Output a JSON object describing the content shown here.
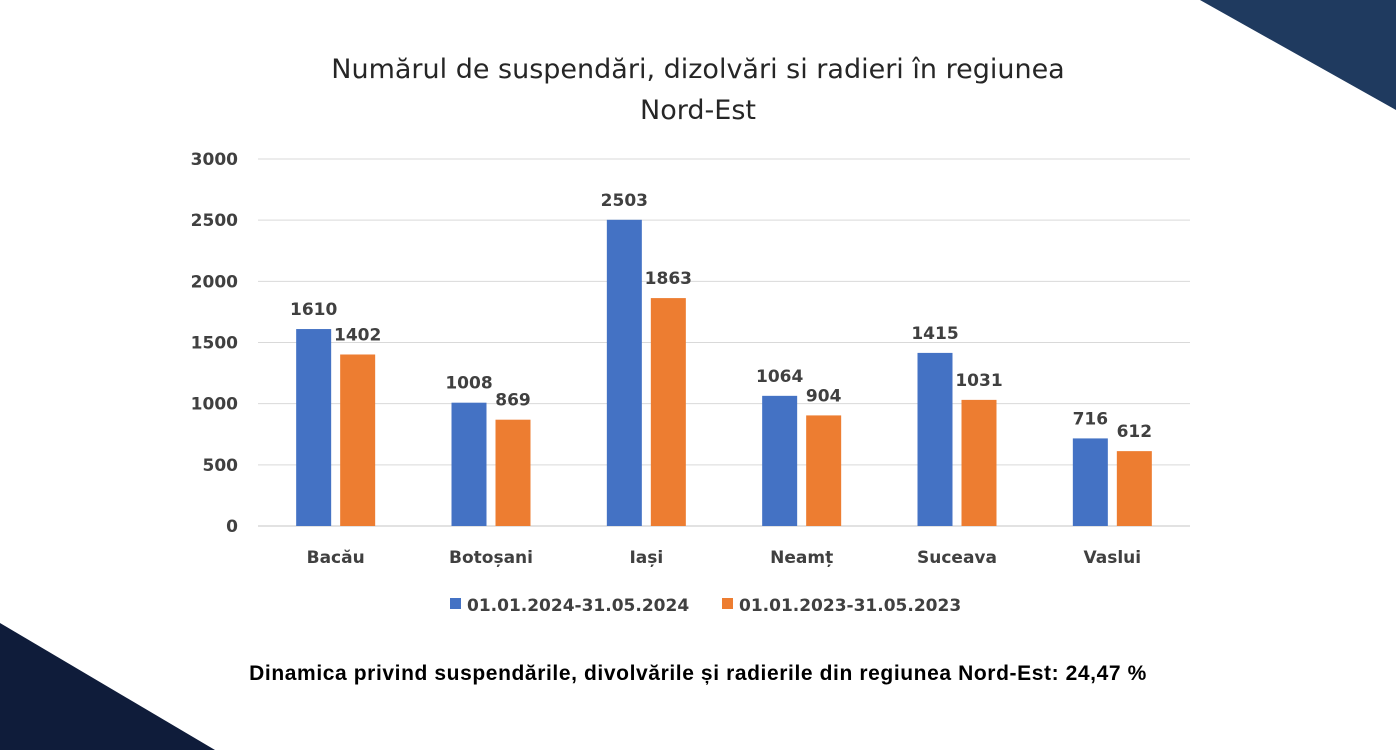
{
  "colors": {
    "series_2024": "#4472C4",
    "series_2023": "#ED7D31",
    "corner_shape": "#1F3A5F",
    "corner_shape_dark": "#0F1C3A",
    "gridline": "#D9D9D9",
    "text": "#404040"
  },
  "chart_data": {
    "type": "bar",
    "title_line1": "Numărul de suspendări, dizolvări si radieri în regiunea",
    "title_line2": "Nord-Est",
    "categories": [
      "Bacău",
      "Botoșani",
      "Iași",
      "Neamț",
      "Suceava",
      "Vaslui"
    ],
    "series": [
      {
        "name": "01.01.2024-31.05.2024",
        "values": [
          1610,
          1008,
          2503,
          1064,
          1415,
          716
        ]
      },
      {
        "name": "01.01.2023-31.05.2023",
        "values": [
          1402,
          869,
          1863,
          904,
          1031,
          612
        ]
      }
    ],
    "ylim": [
      0,
      3000
    ],
    "yticks": [
      0,
      500,
      1000,
      1500,
      2000,
      2500,
      3000
    ],
    "grid": true,
    "legend_position": "bottom",
    "data_labels": true
  },
  "footer": {
    "text": "Dinamica privind suspendările, divolvările și radierile din regiunea Nord-Est: 24,47 %"
  }
}
